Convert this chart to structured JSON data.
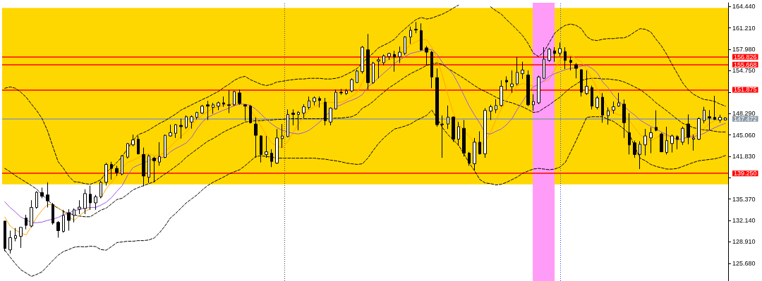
{
  "chart_data": {
    "type": "candlestick",
    "categories": [
      null,
      null,
      null,
      null,
      null,
      null,
      null,
      null,
      null,
      null,
      null,
      null,
      null,
      null,
      null,
      null,
      null,
      null,
      null,
      null,
      null,
      null,
      null,
      null,
      null,
      null,
      null,
      null,
      null,
      null,
      null,
      null,
      null,
      null,
      null,
      null,
      null,
      null,
      null,
      null,
      null,
      null,
      null,
      null,
      null,
      null,
      null,
      null,
      null,
      null,
      null,
      null,
      null,
      null,
      null,
      null,
      null,
      null,
      null,
      null,
      null,
      null,
      null,
      null,
      null,
      null,
      null,
      null,
      null,
      null,
      null,
      null,
      null,
      null,
      null,
      null,
      null,
      null,
      null,
      null,
      null,
      null,
      null,
      null,
      null,
      null,
      null,
      null,
      null,
      null,
      null,
      null,
      null,
      null,
      null,
      null,
      null,
      null,
      null,
      null,
      null,
      null,
      null,
      null,
      null,
      null,
      null,
      null,
      null,
      null,
      null,
      null,
      null,
      null,
      null,
      null,
      null,
      null,
      null,
      null,
      null,
      null,
      null,
      null,
      null,
      null,
      null,
      null,
      null,
      null,
      null,
      null,
      null,
      null,
      null,
      null
    ],
    "series": [
      {
        "color": "#000000",
        "ohlc": [
          [
            132.05,
            132.05,
            127.5,
            127.9
          ],
          [
            127.7,
            130.6,
            127.15,
            129.55
          ],
          [
            129.45,
            131.0,
            129.0,
            129.85
          ],
          [
            129.75,
            131.1,
            128.0,
            131.1
          ],
          [
            132.5,
            133.0,
            130.8,
            131.4
          ],
          [
            131.3,
            135.2,
            131.1,
            134.1
          ],
          [
            134.1,
            136.55,
            133.9,
            136.4
          ],
          [
            136.35,
            137.1,
            135.5,
            135.8
          ],
          [
            136.0,
            137.9,
            134.1,
            135.1
          ],
          [
            134.55,
            134.8,
            131.5,
            131.75
          ],
          [
            131.85,
            132.05,
            129.55,
            130.6
          ],
          [
            130.5,
            133.75,
            130.3,
            132.9
          ],
          [
            133.3,
            133.85,
            130.6,
            132.15
          ],
          [
            132.9,
            133.95,
            131.85,
            133.75
          ],
          [
            133.85,
            135.2,
            133.1,
            134.15
          ],
          [
            133.95,
            136.85,
            133.1,
            136.2
          ],
          [
            136.1,
            137.4,
            133.75,
            134.8
          ],
          [
            134.8,
            136.0,
            133.75,
            135.7
          ],
          [
            135.7,
            138.1,
            135.5,
            137.9
          ],
          [
            137.9,
            140.85,
            137.4,
            140.6
          ],
          [
            140.6,
            141.0,
            138.3,
            140.0
          ],
          [
            140.0,
            140.4,
            138.85,
            139.35
          ],
          [
            139.15,
            142.0,
            138.95,
            141.9
          ],
          [
            141.7,
            143.85,
            141.5,
            143.75
          ],
          [
            143.55,
            145.1,
            143.35,
            144.3
          ],
          [
            144.4,
            144.9,
            142.1,
            142.2
          ],
          [
            142.1,
            143.15,
            137.3,
            138.85
          ],
          [
            138.65,
            142.1,
            137.8,
            141.9
          ],
          [
            141.55,
            141.77,
            137.9,
            141.15
          ],
          [
            140.95,
            143.96,
            140.4,
            141.77
          ],
          [
            141.66,
            145.1,
            141.55,
            145.0
          ],
          [
            144.9,
            146.6,
            144.8,
            145.4
          ],
          [
            145.3,
            146.7,
            144.6,
            146.6
          ],
          [
            146.5,
            147.5,
            144.5,
            146.3
          ],
          [
            146.2,
            148.0,
            145.95,
            147.8
          ],
          [
            147.0,
            148.0,
            146.0,
            147.8
          ],
          [
            147.7,
            148.55,
            147.4,
            148.45
          ],
          [
            148.35,
            149.6,
            148.25,
            149.4
          ],
          [
            149.6,
            150.2,
            147.3,
            149.4
          ],
          [
            149.2,
            149.9,
            148.25,
            149.6
          ],
          [
            149.4,
            150.1,
            148.8,
            149.9
          ],
          [
            149.9,
            150.85,
            149.3,
            149.7
          ],
          [
            149.6,
            151.8,
            148.35,
            149.5
          ],
          [
            149.6,
            151.7,
            149.4,
            151.6
          ],
          [
            151.4,
            151.9,
            149.6,
            149.8
          ],
          [
            149.6,
            149.7,
            147.2,
            149.4
          ],
          [
            149.4,
            149.6,
            146.8,
            146.9
          ],
          [
            146.7,
            147.7,
            141.6,
            145.0
          ],
          [
            144.9,
            145.0,
            140.9,
            142.1
          ],
          [
            142.1,
            144.9,
            141.6,
            142.5
          ],
          [
            142.3,
            142.9,
            140.2,
            141.05
          ],
          [
            140.8,
            145.95,
            140.7,
            144.6
          ],
          [
            144.5,
            146.7,
            143.1,
            144.9
          ],
          [
            144.8,
            148.9,
            144.7,
            148.15
          ],
          [
            148.35,
            148.9,
            146.5,
            148.15
          ],
          [
            148.15,
            148.65,
            145.75,
            148.45
          ],
          [
            148.35,
            149.7,
            147.6,
            149.3
          ],
          [
            149.2,
            150.85,
            148.9,
            150.2
          ],
          [
            150.1,
            150.85,
            149.5,
            150.65
          ],
          [
            150.55,
            150.85,
            149.2,
            150.25
          ],
          [
            150.0,
            150.65,
            146.5,
            147.2
          ],
          [
            147.0,
            149.2,
            146.5,
            149.1
          ],
          [
            148.97,
            151.9,
            148.9,
            151.5
          ],
          [
            151.5,
            152.0,
            151.1,
            151.4
          ],
          [
            151.3,
            152.0,
            151.1,
            151.7
          ],
          [
            151.7,
            153.6,
            151.5,
            153.4
          ],
          [
            152.95,
            154.9,
            152.95,
            154.7
          ],
          [
            154.6,
            158.5,
            154.3,
            158.3
          ],
          [
            157.9,
            160.3,
            151.9,
            152.95
          ],
          [
            152.95,
            156.1,
            152.75,
            155.9
          ],
          [
            156.2,
            156.8,
            153.6,
            156.4
          ],
          [
            155.95,
            157.2,
            155.6,
            157.0
          ],
          [
            156.9,
            157.45,
            156.4,
            157.35
          ],
          [
            157.2,
            157.75,
            154.6,
            156.8
          ],
          [
            156.85,
            158.4,
            155.9,
            157.55
          ],
          [
            157.35,
            159.95,
            157.1,
            159.85
          ],
          [
            159.85,
            161.4,
            158.8,
            160.85
          ],
          [
            161.0,
            162.1,
            160.4,
            160.9
          ],
          [
            160.8,
            161.9,
            157.75,
            157.9
          ],
          [
            158.2,
            158.5,
            155.55,
            157.55
          ],
          [
            157.55,
            157.75,
            152.1,
            153.8
          ],
          [
            153.7,
            155.1,
            146.3,
            146.6
          ],
          [
            146.7,
            148.0,
            141.6,
            146.6
          ],
          [
            146.7,
            149.5,
            145.95,
            147.75
          ],
          [
            147.75,
            147.85,
            144.0,
            144.4
          ],
          [
            144.4,
            147.0,
            143.45,
            146.3
          ],
          [
            146.05,
            147.3,
            141.8,
            142.3
          ],
          [
            142.3,
            142.5,
            140.4,
            140.8
          ],
          [
            140.7,
            144.6,
            139.7,
            143.96
          ],
          [
            143.96,
            145.6,
            142.1,
            142.2
          ],
          [
            142.2,
            149.1,
            141.6,
            148.75
          ],
          [
            148.65,
            149.6,
            147.3,
            149.3
          ],
          [
            148.85,
            150.45,
            148.35,
            149.5
          ],
          [
            149.5,
            153.3,
            149.3,
            152.4
          ],
          [
            153.3,
            153.9,
            151.8,
            153.05
          ],
          [
            152.35,
            154.8,
            151.4,
            152.75
          ],
          [
            152.75,
            156.8,
            152.5,
            154.5
          ],
          [
            154.3,
            156.1,
            153.5,
            154.85
          ],
          [
            154.1,
            154.8,
            149.4,
            149.6
          ],
          [
            149.6,
            151.2,
            148.7,
            150.1
          ],
          [
            149.9,
            154.0,
            149.7,
            153.8
          ],
          [
            153.6,
            158.3,
            153.5,
            156.5
          ],
          [
            156.3,
            158.2,
            156.1,
            158.0
          ],
          [
            157.75,
            158.3,
            156.1,
            157.35
          ],
          [
            157.4,
            159.0,
            156.9,
            158.1
          ],
          [
            157.65,
            158.3,
            155.0,
            156.3
          ],
          [
            156.3,
            156.9,
            154.8,
            156.0
          ],
          [
            155.65,
            155.9,
            153.6,
            155.1
          ],
          [
            154.9,
            155.0,
            150.85,
            151.5
          ],
          [
            151.3,
            154.8,
            151.1,
            152.4
          ],
          [
            152.2,
            152.5,
            148.9,
            149.4
          ],
          [
            149.2,
            150.95,
            148.9,
            150.65
          ],
          [
            150.75,
            151.4,
            146.9,
            148.04
          ],
          [
            147.95,
            149.2,
            146.6,
            148.7
          ],
          [
            148.8,
            150.1,
            148.25,
            149.3
          ],
          [
            149.4,
            151.4,
            149.3,
            149.9
          ],
          [
            149.7,
            150.4,
            144.6,
            146.9
          ],
          [
            145.4,
            148.35,
            142.1,
            143.55
          ],
          [
            143.86,
            144.2,
            141.6,
            142.1
          ],
          [
            142.1,
            144.1,
            139.9,
            143.65
          ],
          [
            143.55,
            145.95,
            141.95,
            144.9
          ],
          [
            144.6,
            146.2,
            142.3,
            145.4
          ],
          [
            146.2,
            148.77,
            145.6,
            145.75
          ],
          [
            145.2,
            145.4,
            142.5,
            142.5
          ],
          [
            142.4,
            146.3,
            142.1,
            144.2
          ],
          [
            143.75,
            145.1,
            142.4,
            144.9
          ],
          [
            144.8,
            145.0,
            142.9,
            144.4
          ],
          [
            143.96,
            146.3,
            143.55,
            146.05
          ],
          [
            146.7,
            148.15,
            143.65,
            144.7
          ],
          [
            144.4,
            145.1,
            142.7,
            144.6
          ],
          [
            144.4,
            147.7,
            144.3,
            147.5
          ],
          [
            147.2,
            149.3,
            146.8,
            148.8
          ],
          [
            147.8,
            148.8,
            145.75,
            147.6
          ],
          [
            147.7,
            150.95,
            147.3,
            147.4
          ],
          [
            147.3,
            148.1,
            146.9,
            147.7
          ],
          [
            147.3,
            147.75,
            147.25,
            147.6
          ]
        ]
      },
      {
        "type": "line",
        "color": "#000000",
        "line_style": "dashed",
        "values": [
          152.1,
          152.3,
          152.1,
          151.5,
          150.75,
          149.7,
          148.7,
          147.5,
          145.7,
          143.3,
          141.0,
          140.0,
          138.8,
          138.0,
          137.9,
          137.7,
          137.6,
          137.9,
          138.3,
          139.4,
          140.1,
          140.9,
          141.8,
          143.0,
          144.2,
          145.1,
          145.4,
          145.8,
          146.3,
          146.8,
          147.2,
          147.7,
          148.2,
          148.8,
          149.2,
          149.6,
          150.0,
          150.4,
          150.75,
          151.2,
          151.6,
          152.2,
          152.7,
          153.3,
          153.7,
          153.9,
          153.4,
          153.05,
          152.7,
          152.5,
          152.7,
          153.05,
          153.15,
          153.3,
          153.4,
          153.5,
          153.5,
          153.6,
          153.6,
          153.6,
          153.5,
          153.5,
          153.6,
          153.8,
          154.2,
          154.6,
          155.1,
          155.9,
          156.7,
          157.4,
          158.2,
          158.6,
          159.0,
          159.5,
          160.4,
          161.1,
          161.8,
          162.45,
          162.8,
          162.55,
          162.7,
          163.0,
          163.3,
          163.7,
          164.2,
          164.65,
          null,
          null,
          null,
          null,
          null,
          164.4,
          163.8,
          163.3,
          162.45,
          161.7,
          160.9,
          160.05,
          158.9,
          157.4,
          156.9,
          157.6,
          159.0,
          160.4,
          161.1,
          161.6,
          161.8,
          161.6,
          161.1,
          159.9,
          159.4,
          159.3,
          159.5,
          159.6,
          159.6,
          159.7,
          159.7,
          160.05,
          160.6,
          161.1,
          161.0,
          160.6,
          159.5,
          158.5,
          157.2,
          155.7,
          154.3,
          152.9,
          151.9,
          151.2,
          150.75,
          150.4,
          150.3,
          150.1,
          149.7,
          149.4
        ]
      },
      {
        "type": "line",
        "color": "#000000",
        "line_style": "dashed",
        "values": [
          140.0,
          139.5,
          138.9,
          138.4,
          137.9,
          137.4,
          136.85,
          136.0,
          135.3,
          134.45,
          134.0,
          133.5,
          133.2,
          133.0,
          132.8,
          132.7,
          132.7,
          133.2,
          133.7,
          134.0,
          134.65,
          135.3,
          135.5,
          136.1,
          136.75,
          137.1,
          137.4,
          137.7,
          138.0,
          138.6,
          139.15,
          139.7,
          140.3,
          140.9,
          141.7,
          142.3,
          142.9,
          143.5,
          144.1,
          144.5,
          145.0,
          145.5,
          145.9,
          146.25,
          146.6,
          147.0,
          147.1,
          147.2,
          147.2,
          147.3,
          147.3,
          147.4,
          147.4,
          147.5,
          147.5,
          147.5,
          147.5,
          147.5,
          147.5,
          147.5,
          147.5,
          147.5,
          147.6,
          147.6,
          147.7,
          147.8,
          148.2,
          149.1,
          149.5,
          150.1,
          150.85,
          151.5,
          152.2,
          152.7,
          153.25,
          153.8,
          154.3,
          154.7,
          155.1,
          155.55,
          155.8,
          155.9,
          155.7,
          155.1,
          154.6,
          154.1,
          153.6,
          153.05,
          152.5,
          152.0,
          151.6,
          151.2,
          150.75,
          150.4,
          150.1,
          149.9,
          149.6,
          149.3,
          148.9,
          148.45,
          148.55,
          149.1,
          149.6,
          150.2,
          150.75,
          151.5,
          152.2,
          152.7,
          153.25,
          153.5,
          153.6,
          153.6,
          153.5,
          153.5,
          153.4,
          153.3,
          153.05,
          152.7,
          152.3,
          151.9,
          151.3,
          150.65,
          149.9,
          149.3,
          148.7,
          148.05,
          147.4,
          146.8,
          146.5,
          146.15,
          145.95,
          145.8,
          145.75,
          145.6,
          145.5,
          145.5
        ]
      },
      {
        "type": "line",
        "color": "#000000",
        "line_style": "dashed",
        "values": [
          127.65,
          126.6,
          125.6,
          124.7,
          124.2,
          123.7,
          124.0,
          124.4,
          125.25,
          126.1,
          126.9,
          127.45,
          127.75,
          128.1,
          128.2,
          128.15,
          128.25,
          128.2,
          127.75,
          127.65,
          128.2,
          128.8,
          128.9,
          129.0,
          129.0,
          129.1,
          129.1,
          129.2,
          129.5,
          130.3,
          131.3,
          132.5,
          133.2,
          134.0,
          134.8,
          135.4,
          136.0,
          136.75,
          137.4,
          137.9,
          138.3,
          138.7,
          139.15,
          139.5,
          139.8,
          140.4,
          141.1,
          141.8,
          141.9,
          141.8,
          141.7,
          141.55,
          141.55,
          141.55,
          141.55,
          141.55,
          141.55,
          141.55,
          141.55,
          141.45,
          141.4,
          141.25,
          141.15,
          141.0,
          140.8,
          140.7,
          140.6,
          140.7,
          141.55,
          142.7,
          143.75,
          144.6,
          145.3,
          145.95,
          146.15,
          146.4,
          146.7,
          147.2,
          147.6,
          148.0,
          148.8,
          147.5,
          146.15,
          145.1,
          144.3,
          143.5,
          142.2,
          140.8,
          139.65,
          138.3,
          137.8,
          137.7,
          137.5,
          137.6,
          137.9,
          138.3,
          138.7,
          139.25,
          139.6,
          139.9,
          140.0,
          139.9,
          139.8,
          139.9,
          140.2,
          140.9,
          142.5,
          144.15,
          145.95,
          147.7,
          147.8,
          147.8,
          147.8,
          147.4,
          147.1,
          146.55,
          145.95,
          145.2,
          143.3,
          141.55,
          141.15,
          140.6,
          140.3,
          140.1,
          139.9,
          139.9,
          140.0,
          140.3,
          140.6,
          140.9,
          141.15,
          141.25,
          141.35,
          141.45,
          141.65,
          141.95
        ]
      },
      {
        "type": "line",
        "color": "#ffa500",
        "line_style": "solid",
        "values": [
          132.65,
          131.3,
          130.7,
          130.25,
          129.95,
          131.3,
          132.65,
          133.7,
          134.55,
          134.55,
          134.05,
          133.4,
          132.75,
          132.15,
          132.9,
          133.5,
          133.9,
          null,
          135.5,
          136.95,
          137.9,
          138.95,
          140.1,
          140.9,
          141.2,
          141.65,
          142.1,
          142.2,
          141.95,
          141.9,
          142.5,
          143.3,
          144.1,
          144.8,
          145.5,
          146.45,
          147.4,
          148.05,
          148.55,
          149.1,
          149.3,
          149.5,
          149.7,
          149.8,
          149.9,
          149.6,
          148.9,
          147.7,
          146.35,
          145.0,
          143.85,
          143.35,
          143.1,
          144.05,
          145.4,
          146.7,
          147.8,
          148.8,
          149.3,
          149.7,
          150.0,
          150.0,
          149.9,
          150.0,
          150.3,
          150.85,
          151.5,
          153.05,
          154.6,
          155.35,
          155.8,
          156.1,
          156.4,
          156.8,
          157.3,
          157.85,
          158.7,
          159.1,
          159.5,
          159.4,
          158.3,
          156.4,
          154.0,
          151.1,
          148.45,
          146.7,
          145.75,
          144.8,
          143.95,
          143.5,
          144.05,
          145.5,
          147.3,
          148.95,
          150.4,
          151.5,
          152.45,
          152.85,
          152.6,
          152.45,
          null,
          153.05,
          153.45,
          154.9,
          156.4,
          157.0,
          157.1,
          156.6,
          156.1,
          155.05,
          153.45,
          152.0,
          150.65,
          148.95,
          148.45,
          148.1,
          148.0,
          147.2,
          146.15,
          145.1,
          144.5,
          144.15,
          144.6,
          145.1,
          144.9,
          144.6,
          144.3,
          144.5,
          144.8,
          145.1,
          145.4,
          146.05,
          146.8,
          147.2,
          147.4,
          null
        ]
      },
      {
        "type": "line",
        "color": "#9b59e0",
        "line_style": "solid",
        "values": [
          134.95,
          134.1,
          133.4,
          132.65,
          132.25,
          131.8,
          131.8,
          131.9,
          132.15,
          132.35,
          132.6,
          133.0,
          133.3,
          133.6,
          133.8,
          134.0,
          134.1,
          134.1,
          134.45,
          134.9,
          135.6,
          136.55,
          137.4,
          138.95,
          140.1,
          140.5,
          140.8,
          141.2,
          141.45,
          141.55,
          141.75,
          142.5,
          143.0,
          143.4,
          143.85,
          144.7,
          145.95,
          147.0,
          147.7,
          148.1,
          148.45,
          148.8,
          149.1,
          149.5,
          149.7,
          149.7,
          149.5,
          148.95,
          148.2,
          147.4,
          146.7,
          146.15,
          145.75,
          145.5,
          145.3,
          145.2,
          145.4,
          145.75,
          146.35,
          147.0,
          147.9,
          148.55,
          149.3,
          149.6,
          150.0,
          150.3,
          150.65,
          151.15,
          152.3,
          152.95,
          153.65,
          154.4,
          155.1,
          155.85,
          156.4,
          156.9,
          157.35,
          157.55,
          157.75,
          157.95,
          157.95,
          157.2,
          155.95,
          155.1,
          154.2,
          152.7,
          151.05,
          149.4,
          148.05,
          146.8,
          145.3,
          145.2,
          145.6,
          145.95,
          146.6,
          147.5,
          148.9,
          150.1,
          151.4,
          152.3,
          152.7,
          153.25,
          153.9,
          154.3,
          154.6,
          154.9,
          155.1,
          155.2,
          155.45,
          155.55,
          155.1,
          154.4,
          153.05,
          152.2,
          151.05,
          150.2,
          149.4,
          148.65,
          148.05,
          147.3,
          146.8,
          146.35,
          145.95,
          145.5,
          145.1,
          144.7,
          144.3,
          144.5,
          144.7,
          144.8,
          145.0,
          145.3,
          145.75,
          146.15,
          146.5,
          146.8
        ]
      }
    ],
    "ylim": [
      123.0,
      165.0
    ],
    "yticks": [
      {
        "value": 164.44,
        "label": "164.440"
      },
      {
        "value": 161.21,
        "label": "161.210"
      },
      {
        "value": 157.98,
        "label": "157.980"
      },
      {
        "value": 154.75,
        "label": "154.750"
      },
      {
        "value": 151.52,
        "label": null
      },
      {
        "value": 148.29,
        "label": "148.290"
      },
      {
        "value": 145.06,
        "label": "145.060"
      },
      {
        "value": 141.83,
        "label": "141.830"
      },
      {
        "value": 138.6,
        "label": null
      },
      {
        "value": 135.37,
        "label": "135.370"
      },
      {
        "value": 132.14,
        "label": "132.140"
      },
      {
        "value": 128.91,
        "label": "128.910"
      },
      {
        "value": 125.68,
        "label": "125.680"
      }
    ],
    "tick_labels": "y",
    "marker": "none",
    "bands": [
      {
        "axis": "y",
        "from": 137.6,
        "to": 164.23,
        "color": "#ffd700"
      }
    ],
    "ref_lines": [
      {
        "axis": "y",
        "value": 156.826,
        "label": "156.826",
        "color": "#ff0000"
      },
      {
        "axis": "y",
        "value": 155.668,
        "label": "155.668",
        "color": "#ff0000"
      },
      {
        "axis": "y",
        "value": 151.875,
        "label": "151.875",
        "color": "#ff0000"
      },
      {
        "axis": "y",
        "value": 147.472,
        "label": "147.472",
        "color": "#8a99a6"
      },
      {
        "axis": "y",
        "value": 139.25,
        "label": "139.250",
        "color": "#ff0000"
      }
    ]
  }
}
